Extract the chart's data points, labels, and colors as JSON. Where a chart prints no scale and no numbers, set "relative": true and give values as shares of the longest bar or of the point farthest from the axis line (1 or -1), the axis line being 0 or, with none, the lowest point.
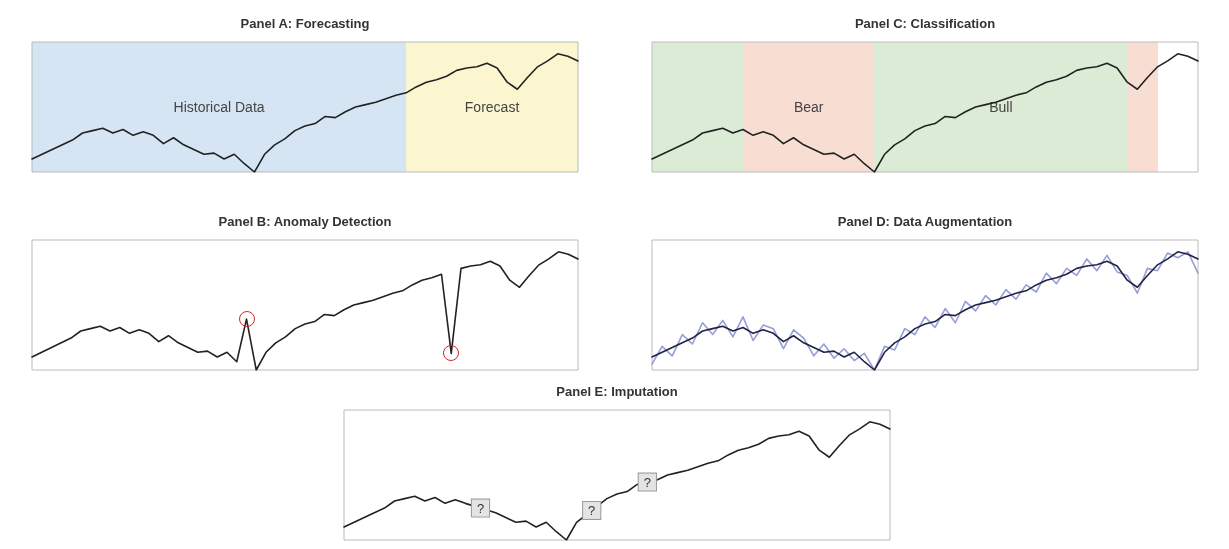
{
  "chart_data": [
    {
      "type": "line",
      "title": "Panel A: Forecasting",
      "relative": true,
      "categories": [
        null,
        null,
        null,
        null,
        null,
        null,
        null,
        null,
        null,
        null,
        null,
        null,
        null,
        null,
        null,
        null,
        null,
        null,
        null,
        null,
        null,
        null,
        null,
        null,
        null,
        null,
        null,
        null,
        null,
        null,
        null,
        null,
        null,
        null,
        null,
        null,
        null,
        null,
        null,
        null,
        null,
        null,
        null,
        null,
        null,
        null,
        null,
        null,
        null,
        null,
        null,
        null,
        null,
        null,
        null
      ],
      "series": [
        {
          "color": "#222222",
          "values": [
            0.11,
            0.15,
            0.19,
            0.23,
            0.27,
            0.33,
            0.35,
            0.37,
            0.33,
            0.36,
            0.31,
            0.34,
            0.31,
            0.24,
            0.29,
            0.23,
            0.19,
            0.15,
            0.16,
            0.11,
            0.15,
            0.07,
            0,
            0.15,
            0.23,
            0.28,
            0.35,
            0.39,
            0.41,
            0.47,
            0.46,
            0.51,
            0.55,
            0.57,
            0.59,
            0.62,
            0.65,
            0.67,
            0.72,
            0.76,
            0.78,
            0.81,
            0.86,
            0.88,
            0.89,
            0.92,
            0.88,
            0.76,
            0.7,
            0.8,
            0.89,
            0.94,
            1,
            0.98,
            0.94
          ]
        }
      ],
      "annotations": [
        "Historical Data",
        "Forecast"
      ]
    },
    {
      "type": "line",
      "title": "Panel C: Classification",
      "relative": true,
      "categories": [
        null,
        null,
        null,
        null,
        null,
        null,
        null,
        null,
        null,
        null,
        null,
        null,
        null,
        null,
        null,
        null,
        null,
        null,
        null,
        null,
        null,
        null,
        null,
        null,
        null,
        null,
        null,
        null,
        null,
        null,
        null,
        null,
        null,
        null,
        null,
        null,
        null,
        null,
        null,
        null,
        null,
        null,
        null,
        null,
        null,
        null,
        null,
        null,
        null,
        null,
        null,
        null,
        null,
        null,
        null
      ],
      "series": [
        {
          "color": "#222222",
          "values": [
            0.11,
            0.15,
            0.19,
            0.23,
            0.27,
            0.33,
            0.35,
            0.37,
            0.33,
            0.36,
            0.31,
            0.34,
            0.31,
            0.24,
            0.29,
            0.23,
            0.19,
            0.15,
            0.16,
            0.11,
            0.15,
            0.07,
            0,
            0.15,
            0.23,
            0.28,
            0.35,
            0.39,
            0.41,
            0.47,
            0.46,
            0.51,
            0.55,
            0.57,
            0.59,
            0.62,
            0.65,
            0.67,
            0.72,
            0.76,
            0.78,
            0.81,
            0.86,
            0.88,
            0.89,
            0.92,
            0.88,
            0.76,
            0.7,
            0.8,
            0.89,
            0.94,
            1,
            0.98,
            0.94
          ]
        }
      ],
      "annotations": [
        "Bear",
        "Bull"
      ]
    },
    {
      "type": "line",
      "title": "Panel B: Anomaly Detection",
      "relative": true,
      "categories": [
        null,
        null,
        null,
        null,
        null,
        null,
        null,
        null,
        null,
        null,
        null,
        null,
        null,
        null,
        null,
        null,
        null,
        null,
        null,
        null,
        null,
        null,
        null,
        null,
        null,
        null,
        null,
        null,
        null,
        null,
        null,
        null,
        null,
        null,
        null,
        null,
        null,
        null,
        null,
        null,
        null,
        null,
        null,
        null,
        null,
        null,
        null,
        null,
        null,
        null,
        null,
        null,
        null,
        null,
        null,
        null,
        null
      ],
      "series": [
        {
          "color": "#222222",
          "values": [
            0.11,
            0.15,
            0.19,
            0.23,
            0.27,
            0.33,
            0.35,
            0.37,
            0.33,
            0.36,
            0.31,
            0.34,
            0.31,
            0.24,
            0.29,
            0.23,
            0.19,
            0.15,
            0.16,
            0.11,
            0.15,
            0.07,
            0.43,
            0,
            0.15,
            0.23,
            0.28,
            0.35,
            0.39,
            0.41,
            0.47,
            0.46,
            0.51,
            0.55,
            0.57,
            0.59,
            0.62,
            0.65,
            0.67,
            0.72,
            0.76,
            0.78,
            0.81,
            0.14,
            0.86,
            0.88,
            0.89,
            0.92,
            0.88,
            0.76,
            0.7,
            0.8,
            0.89,
            0.94,
            1,
            0.98,
            0.94
          ]
        }
      ]
    },
    {
      "type": "line",
      "title": "Panel D: Data Augmentation",
      "relative": true,
      "categories": [
        null,
        null,
        null,
        null,
        null,
        null,
        null,
        null,
        null,
        null,
        null,
        null,
        null,
        null,
        null,
        null,
        null,
        null,
        null,
        null,
        null,
        null,
        null,
        null,
        null,
        null,
        null,
        null,
        null,
        null,
        null,
        null,
        null,
        null,
        null,
        null,
        null,
        null,
        null,
        null,
        null,
        null,
        null,
        null,
        null,
        null,
        null,
        null,
        null,
        null,
        null,
        null,
        null,
        null,
        null
      ],
      "series": [
        {
          "color": "#959ed6",
          "values": [
            0.05,
            0.2,
            0.12,
            0.3,
            0.22,
            0.4,
            0.3,
            0.42,
            0.28,
            0.45,
            0.25,
            0.38,
            0.35,
            0.18,
            0.34,
            0.27,
            0.12,
            0.22,
            0.1,
            0.18,
            0.08,
            0.14,
            0,
            0.2,
            0.17,
            0.35,
            0.3,
            0.45,
            0.36,
            0.52,
            0.4,
            0.58,
            0.5,
            0.63,
            0.55,
            0.68,
            0.6,
            0.72,
            0.66,
            0.82,
            0.73,
            0.86,
            0.8,
            0.94,
            0.84,
            0.97,
            0.83,
            0.8,
            0.65,
            0.86,
            0.84,
            0.99,
            0.95,
            1,
            0.82
          ]
        },
        {
          "color": "#222244",
          "values": [
            0.11,
            0.15,
            0.19,
            0.23,
            0.27,
            0.33,
            0.35,
            0.37,
            0.33,
            0.36,
            0.31,
            0.34,
            0.31,
            0.24,
            0.29,
            0.23,
            0.19,
            0.15,
            0.16,
            0.11,
            0.15,
            0.07,
            0,
            0.15,
            0.23,
            0.28,
            0.35,
            0.39,
            0.41,
            0.47,
            0.46,
            0.51,
            0.55,
            0.57,
            0.59,
            0.62,
            0.65,
            0.67,
            0.72,
            0.76,
            0.78,
            0.81,
            0.86,
            0.88,
            0.89,
            0.92,
            0.88,
            0.76,
            0.7,
            0.8,
            0.89,
            0.94,
            1,
            0.98,
            0.94
          ]
        }
      ]
    },
    {
      "type": "line",
      "title": "Panel E: Imputation",
      "relative": true,
      "categories": [
        null,
        null,
        null,
        null,
        null,
        null,
        null,
        null,
        null,
        null,
        null,
        null,
        null,
        null,
        null,
        null,
        null,
        null,
        null,
        null,
        null,
        null,
        null,
        null,
        null,
        null,
        null,
        null,
        null,
        null,
        null,
        null,
        null,
        null,
        null,
        null,
        null,
        null,
        null,
        null,
        null,
        null,
        null,
        null,
        null,
        null,
        null,
        null,
        null,
        null,
        null,
        null,
        null,
        null,
        null
      ],
      "series": [
        {
          "color": "#222222",
          "values": [
            0.11,
            0.15,
            0.19,
            0.23,
            0.27,
            0.33,
            0.35,
            0.37,
            0.33,
            0.36,
            0.31,
            0.34,
            0.31,
            null,
            null,
            0.23,
            0.19,
            0.15,
            0.16,
            0.11,
            0.15,
            0.07,
            0,
            0.15,
            null,
            null,
            0.35,
            0.39,
            0.41,
            0.47,
            null,
            0.51,
            0.55,
            0.57,
            0.59,
            0.62,
            0.65,
            0.67,
            0.72,
            0.76,
            0.78,
            0.81,
            0.86,
            0.88,
            0.89,
            0.92,
            0.88,
            0.76,
            0.7,
            0.8,
            0.89,
            0.94,
            1,
            0.98,
            0.94
          ]
        }
      ],
      "annotations": [
        "?",
        "?",
        "?"
      ]
    }
  ]
}
